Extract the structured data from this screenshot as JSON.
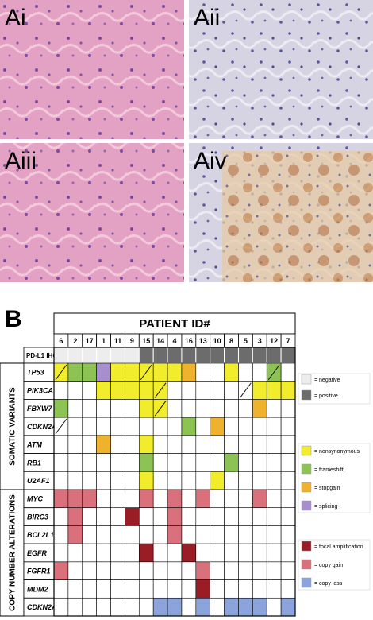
{
  "panel_a": {
    "labels": [
      "Ai",
      "Aii",
      "Aiii",
      "Aiv"
    ]
  },
  "panel_b": {
    "label": "B",
    "header": "PATIENT ID#",
    "patients": [
      "6",
      "2",
      "17",
      "1",
      "11",
      "9",
      "15",
      "14",
      "4",
      "16",
      "13",
      "10",
      "8",
      "5",
      "3",
      "12",
      "7"
    ],
    "pdl1": {
      "label": "PD-L1 IHC",
      "cells": [
        0,
        0,
        0,
        0,
        0,
        0,
        1,
        1,
        1,
        1,
        1,
        1,
        1,
        1,
        1,
        1,
        1
      ]
    },
    "groups": [
      {
        "label": "SOMATIC VARIANTS",
        "rows": [
          {
            "gene": "TP53",
            "cells": [
              2,
              3,
              3,
              5,
              2,
              2,
              2,
              2,
              2,
              4,
              null,
              null,
              2,
              null,
              null,
              3,
              null
            ],
            "diagonal": [
              0,
              6,
              15
            ]
          },
          {
            "gene": "PIK3CA",
            "cells": [
              null,
              null,
              null,
              2,
              2,
              2,
              2,
              2,
              null,
              null,
              null,
              null,
              null,
              null,
              2,
              2,
              2
            ],
            "diagonal": [
              7,
              13
            ]
          },
          {
            "gene": "FBXW7",
            "cells": [
              3,
              null,
              null,
              null,
              null,
              null,
              2,
              2,
              null,
              null,
              null,
              null,
              null,
              null,
              4,
              null,
              null
            ],
            "diagonal": [
              7
            ]
          },
          {
            "gene": "CDKN2A",
            "cells": [
              null,
              null,
              null,
              null,
              null,
              null,
              null,
              null,
              null,
              3,
              null,
              4,
              null,
              null,
              null,
              null,
              null
            ],
            "diagonal": [
              0
            ]
          },
          {
            "gene": "ATM",
            "cells": [
              null,
              null,
              null,
              4,
              null,
              null,
              2,
              null,
              null,
              null,
              null,
              null,
              null,
              null,
              null,
              null,
              null
            ],
            "diagonal": []
          },
          {
            "gene": "RB1",
            "cells": [
              null,
              null,
              null,
              null,
              null,
              null,
              3,
              null,
              null,
              null,
              null,
              null,
              3,
              null,
              null,
              null,
              null
            ],
            "diagonal": []
          },
          {
            "gene": "U2AF1",
            "cells": [
              null,
              null,
              null,
              null,
              null,
              null,
              2,
              null,
              null,
              null,
              null,
              2,
              null,
              null,
              null,
              null,
              null
            ],
            "diagonal": []
          }
        ]
      },
      {
        "label": "COPY NUMBER ALTERATIONS",
        "rows": [
          {
            "gene": "MYC",
            "cells": [
              7,
              7,
              7,
              null,
              null,
              null,
              7,
              null,
              7,
              null,
              7,
              null,
              null,
              null,
              7,
              null,
              null
            ],
            "diagonal": []
          },
          {
            "gene": "BIRC3",
            "cells": [
              null,
              7,
              null,
              null,
              null,
              6,
              null,
              null,
              7,
              null,
              null,
              null,
              null,
              null,
              null,
              null,
              null
            ],
            "diagonal": []
          },
          {
            "gene": "BCL2L1",
            "cells": [
              null,
              7,
              null,
              null,
              null,
              null,
              null,
              null,
              7,
              null,
              null,
              null,
              null,
              null,
              null,
              null,
              null
            ],
            "diagonal": []
          },
          {
            "gene": "EGFR",
            "cells": [
              null,
              null,
              null,
              null,
              null,
              null,
              6,
              null,
              null,
              6,
              null,
              null,
              null,
              null,
              null,
              null,
              null
            ],
            "diagonal": []
          },
          {
            "gene": "FGFR1",
            "cells": [
              7,
              null,
              null,
              null,
              null,
              null,
              null,
              null,
              null,
              null,
              7,
              null,
              null,
              null,
              null,
              null,
              null
            ],
            "diagonal": []
          },
          {
            "gene": "MDM2",
            "cells": [
              null,
              null,
              null,
              null,
              null,
              null,
              null,
              null,
              null,
              null,
              6,
              null,
              null,
              null,
              null,
              null,
              null
            ],
            "diagonal": []
          },
          {
            "gene": "CDKN2A",
            "cells": [
              null,
              null,
              null,
              null,
              null,
              null,
              null,
              8,
              8,
              null,
              8,
              null,
              8,
              8,
              8,
              null,
              8
            ],
            "diagonal": []
          }
        ]
      }
    ],
    "legend": [
      {
        "label": "= negative",
        "color": "#ededed"
      },
      {
        "label": "= positive",
        "color": "#6c6c6c"
      },
      {
        "label": "= nonsynonymous",
        "color": "#f1ec2c"
      },
      {
        "label": "= frameshift",
        "color": "#8dc255"
      },
      {
        "label": "= stopgain",
        "color": "#eeb22d"
      },
      {
        "label": "= splicing",
        "color": "#a68fcc"
      },
      {
        "label": "= focal amplification",
        "color": "#9a1c24"
      },
      {
        "label": "= copy gain",
        "color": "#d9707c"
      },
      {
        "label": "= copy loss",
        "color": "#8ba5dc"
      }
    ]
  }
}
